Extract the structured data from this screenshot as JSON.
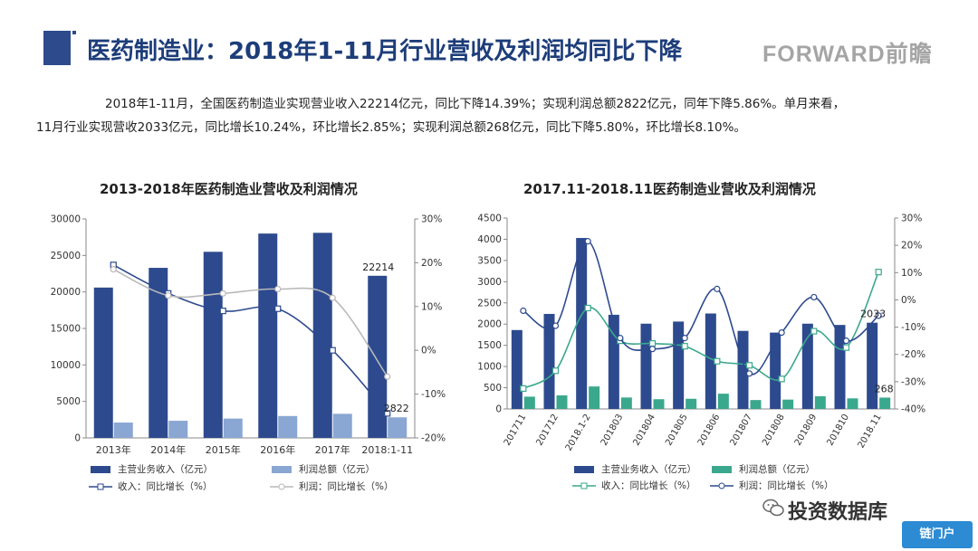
{
  "header": {
    "title": "医药制造业：2018年1-11月行业营收及利润均同比下降",
    "brand": "FORWARD前瞻"
  },
  "summary": {
    "line1": "2018年1-11月，全国医药制造业实现营业收入22214亿元，同比下降14.39%；实现利润总额2822亿元，同年下降5.86%。单月来看，",
    "line2": "11月行业实现营收2033亿元，同比增长10.24%，环比增长2.85%；实现利润总额268亿元，同比下降5.80%，环比增长8.10%。"
  },
  "footer": {
    "brand": "投资数据库",
    "badge": "链门户"
  },
  "colors": {
    "revenue_bar": "#2d4a8e",
    "profit_bar_left": "#8aa6d2",
    "profit_bar_right": "#3aa88c",
    "revenue_line_left": "#2d4a8e",
    "profit_line_left": "#b9b9b9",
    "revenue_line_right": "#3aa88c",
    "profit_line_right": "#2d4a8e"
  },
  "chart_data": [
    {
      "type": "bar",
      "title": "2013-2018年医药制造业营收及利润情况",
      "categories": [
        "2013年",
        "2014年",
        "2015年",
        "2016年",
        "2017年",
        "2018:1-11"
      ],
      "series": [
        {
          "name": "主营业务收入（亿元）",
          "kind": "bar",
          "axis": "left",
          "values": [
            20600,
            23300,
            25500,
            28000,
            28100,
            22214
          ]
        },
        {
          "name": "利润总额（亿元）",
          "kind": "bar",
          "axis": "left",
          "values": [
            2100,
            2350,
            2650,
            3000,
            3300,
            2822
          ]
        },
        {
          "name": "收入：同比增长（%）",
          "kind": "line",
          "axis": "right",
          "values": [
            19.5,
            13.0,
            9.0,
            9.5,
            0,
            -14.4
          ]
        },
        {
          "name": "利润：同比增长（%）",
          "kind": "line",
          "axis": "right",
          "values": [
            18.5,
            12.5,
            13.0,
            14.0,
            12.0,
            -6
          ]
        }
      ],
      "data_labels": [
        {
          "series": 0,
          "index": 5,
          "text": "22214"
        },
        {
          "series": 1,
          "index": 5,
          "text": "2822"
        }
      ],
      "ylim": [
        0,
        30000
      ],
      "yticks": [
        "0",
        "5000",
        "10000",
        "15000",
        "20000",
        "25000",
        "30000"
      ],
      "y2lim": [
        -20,
        30
      ],
      "y2ticks": [
        "-20%",
        "-10%",
        "0%",
        "10%",
        "20%",
        "30%"
      ],
      "legend_position": "bottom"
    },
    {
      "type": "bar",
      "title": "2017.11-2018.11医药制造业营收及利润情况",
      "categories": [
        "201711",
        "201712",
        "2018.1-2",
        "201803",
        "201804",
        "201805",
        "201806",
        "201807",
        "201808",
        "201809",
        "201810",
        "2018.11"
      ],
      "series": [
        {
          "name": "主营业务收入（亿元）",
          "kind": "bar",
          "axis": "left",
          "values": [
            1860,
            2240,
            4030,
            2220,
            2010,
            2060,
            2250,
            1840,
            1800,
            2010,
            1980,
            2033
          ]
        },
        {
          "name": "利润总额（亿元）",
          "kind": "bar",
          "axis": "left",
          "values": [
            290,
            320,
            530,
            270,
            230,
            240,
            360,
            210,
            220,
            300,
            250,
            268
          ]
        },
        {
          "name": "收入：同比增长（%）",
          "kind": "line",
          "axis": "right",
          "values": [
            -32.5,
            -26,
            -3,
            -15,
            -16,
            -17,
            -22.5,
            -24,
            -29,
            -11.5,
            -17.5,
            10.2
          ]
        },
        {
          "name": "利润：同比增长（%）",
          "kind": "line",
          "axis": "right",
          "values": [
            -4,
            -9.5,
            21.5,
            -14,
            -18,
            -14,
            4,
            -27,
            -12,
            1,
            -15,
            -5.8
          ]
        }
      ],
      "data_labels": [
        {
          "series": 0,
          "index": 11,
          "text": "2033"
        },
        {
          "series": 1,
          "index": 11,
          "text": "268"
        }
      ],
      "ylim": [
        0,
        4500
      ],
      "yticks": [
        "0",
        "500",
        "1000",
        "1500",
        "2000",
        "2500",
        "3000",
        "3500",
        "4000",
        "4500"
      ],
      "y2lim": [
        -40,
        30
      ],
      "y2ticks": [
        "-40%",
        "-30%",
        "-20%",
        "-10%",
        "0%",
        "10%",
        "20%",
        "30%"
      ],
      "legend_position": "bottom"
    }
  ]
}
